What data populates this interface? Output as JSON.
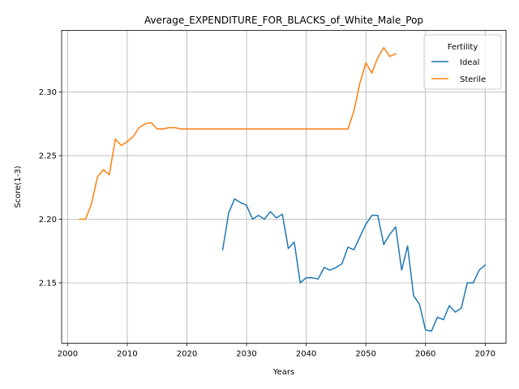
{
  "chart_data": {
    "type": "line",
    "title": "Average_EXPENDITURE_FOR_BLACKS_of_White_Male_Pop",
    "xlabel": "Years",
    "ylabel": "Score(1-3)",
    "xlim": [
      1999,
      2073.5
    ],
    "ylim": [
      2.1025,
      2.3485
    ],
    "xticks": [
      2000,
      2010,
      2020,
      2030,
      2040,
      2050,
      2060,
      2070
    ],
    "xtick_labels": [
      "2000",
      "2010",
      "2020",
      "2030",
      "2040",
      "2050",
      "2060",
      "2070"
    ],
    "yticks": [
      2.15,
      2.2,
      2.25,
      2.3
    ],
    "ytick_labels": [
      "2.15",
      "2.20",
      "2.25",
      "2.30"
    ],
    "grid": true,
    "legend": {
      "title": "Fertility",
      "position": "top-right"
    },
    "series": [
      {
        "name": "Ideal",
        "color": "#1f77b4",
        "x": [
          2026,
          2027,
          2028,
          2029,
          2030,
          2031,
          2032,
          2033,
          2034,
          2035,
          2036,
          2037,
          2038,
          2039,
          2040,
          2041,
          2042,
          2043,
          2044,
          2045,
          2046,
          2047,
          2048,
          2049,
          2050,
          2051,
          2052,
          2053,
          2054,
          2055,
          2056,
          2057,
          2058,
          2059,
          2060,
          2061,
          2062,
          2063,
          2064,
          2065,
          2066,
          2067,
          2068,
          2069,
          2070
        ],
        "y": [
          2.176,
          2.205,
          2.216,
          2.213,
          2.211,
          2.2,
          2.203,
          2.2,
          2.206,
          2.201,
          2.204,
          2.177,
          2.182,
          2.15,
          2.154,
          2.154,
          2.153,
          2.162,
          2.16,
          2.162,
          2.165,
          2.178,
          2.176,
          2.186,
          2.196,
          2.203,
          2.203,
          2.18,
          2.188,
          2.194,
          2.16,
          2.179,
          2.14,
          2.133,
          2.113,
          2.112,
          2.123,
          2.121,
          2.132,
          2.127,
          2.13,
          2.15,
          2.15,
          2.16,
          2.164
        ]
      },
      {
        "name": "Sterile",
        "color": "#ff7f0e",
        "x": [
          2002,
          2003,
          2004,
          2005,
          2006,
          2007,
          2008,
          2009,
          2010,
          2011,
          2012,
          2013,
          2014,
          2015,
          2016,
          2017,
          2018,
          2019,
          2020,
          2021,
          2022,
          2023,
          2024,
          2025,
          2026,
          2027,
          2028,
          2029,
          2030,
          2031,
          2032,
          2033,
          2034,
          2035,
          2036,
          2037,
          2038,
          2039,
          2040,
          2041,
          2042,
          2043,
          2044,
          2045,
          2046,
          2047,
          2048,
          2049,
          2050,
          2051,
          2052,
          2053,
          2054,
          2055
        ],
        "y": [
          2.2,
          2.2,
          2.212,
          2.233,
          2.239,
          2.235,
          2.263,
          2.258,
          2.261,
          2.265,
          2.272,
          2.275,
          2.276,
          2.271,
          2.271,
          2.272,
          2.272,
          2.271,
          2.271,
          2.271,
          2.271,
          2.271,
          2.271,
          2.271,
          2.271,
          2.271,
          2.271,
          2.271,
          2.271,
          2.271,
          2.271,
          2.271,
          2.271,
          2.271,
          2.271,
          2.271,
          2.271,
          2.271,
          2.271,
          2.271,
          2.271,
          2.271,
          2.271,
          2.271,
          2.271,
          2.271,
          2.285,
          2.307,
          2.323,
          2.315,
          2.327,
          2.335,
          2.328,
          2.33
        ]
      }
    ]
  }
}
